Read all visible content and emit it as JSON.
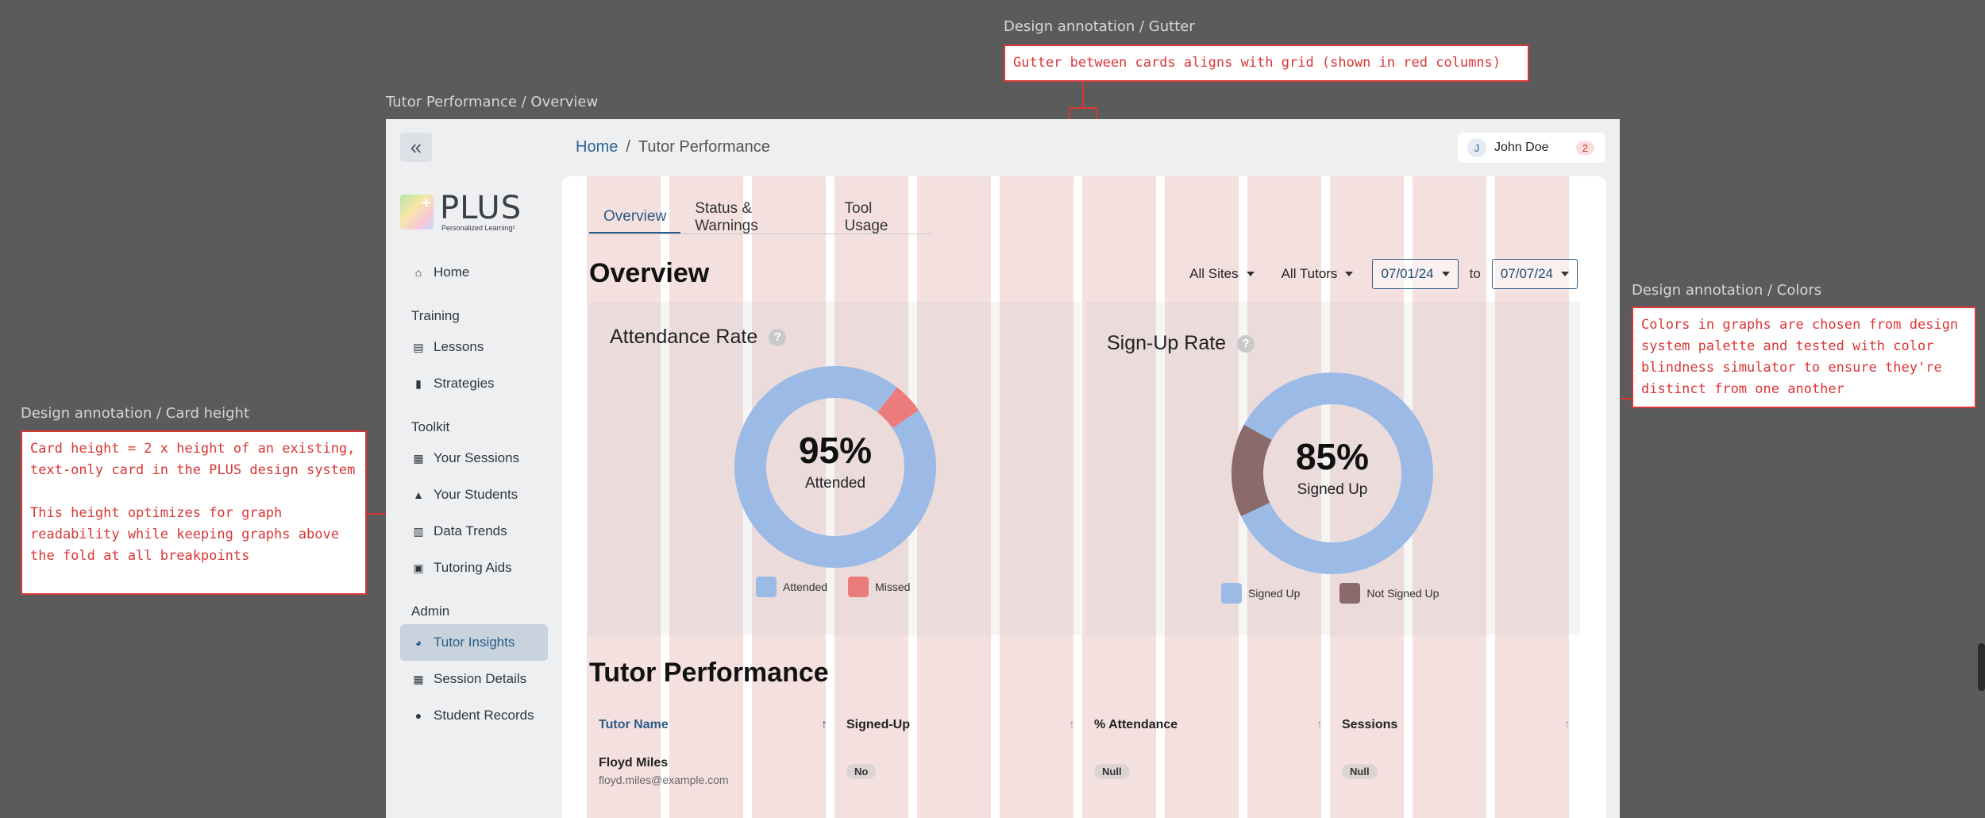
{
  "frame_label": "Tutor Performance / Overview",
  "sidebar": {
    "logo": {
      "word": "PLUS",
      "tagline": "Personalized Learning²"
    },
    "items": [
      {
        "type": "item",
        "label": "Home",
        "icon": "home-icon"
      },
      {
        "type": "section",
        "label": "Training"
      },
      {
        "type": "item",
        "label": "Lessons",
        "icon": "book-icon"
      },
      {
        "type": "item",
        "label": "Strategies",
        "icon": "clipboard-icon"
      },
      {
        "type": "section",
        "label": "Toolkit"
      },
      {
        "type": "item",
        "label": "Your Sessions",
        "icon": "calendar-icon"
      },
      {
        "type": "item",
        "label": "Your Students",
        "icon": "graduation-cap-icon"
      },
      {
        "type": "item",
        "label": "Data Trends",
        "icon": "bar-chart-icon"
      },
      {
        "type": "item",
        "label": "Tutoring Aids",
        "icon": "toolbox-icon"
      },
      {
        "type": "section",
        "label": "Admin"
      },
      {
        "type": "item",
        "label": "Tutor Insights",
        "icon": "pie-chart-icon",
        "active": true
      },
      {
        "type": "item",
        "label": "Session Details",
        "icon": "calendar-icon"
      },
      {
        "type": "item",
        "label": "Student Records",
        "icon": "users-icon"
      }
    ]
  },
  "breadcrumb": {
    "home": "Home",
    "separator": "/",
    "current": "Tutor Performance"
  },
  "user": {
    "initial": "J",
    "name": "John Doe",
    "notifications": "2"
  },
  "tabs": [
    {
      "label": "Overview",
      "active": true
    },
    {
      "label": "Status & Warnings"
    },
    {
      "label": "Tool Usage"
    }
  ],
  "overview_title": "Overview",
  "filters": {
    "sites": "All Sites",
    "tutors": "All Tutors",
    "date_from": "07/01/24",
    "to": "to",
    "date_to": "07/07/24"
  },
  "attendance": {
    "title": "Attendance Rate",
    "help": "?",
    "pct": "95%",
    "label": "Attended",
    "legend": [
      "Attended",
      "Missed"
    ]
  },
  "signup": {
    "title": "Sign-Up Rate",
    "help": "?",
    "pct": "85%",
    "label": "Signed Up",
    "legend": [
      "Signed Up",
      "Not Signed Up"
    ]
  },
  "chart_data": [
    {
      "type": "pie",
      "title": "Attendance Rate",
      "categories": [
        "Attended",
        "Missed"
      ],
      "values": [
        95,
        5
      ],
      "colors": [
        "#9bbbe6",
        "#ec7c7c"
      ]
    },
    {
      "type": "pie",
      "title": "Sign-Up Rate",
      "categories": [
        "Signed Up",
        "Not Signed Up"
      ],
      "values": [
        85,
        15
      ],
      "colors": [
        "#9bbbe6",
        "#8a6a6a"
      ]
    }
  ],
  "performance_title": "Tutor Performance",
  "table": {
    "columns": [
      "Tutor Name",
      "Signed-Up",
      "% Attendance",
      "Sessions"
    ],
    "rows": [
      {
        "name": "Floyd Miles",
        "email": "floyd.miles@example.com",
        "signed_up": "No",
        "attendance": "Null",
        "sessions": "Null"
      }
    ]
  },
  "annotations": {
    "gutter": {
      "label": "Design annotation / Gutter",
      "text": "Gutter between cards aligns with grid (shown in red columns)"
    },
    "colors": {
      "label": "Design annotation / Colors",
      "text": "Colors in graphs are chosen from design system palette and tested with color blindness simulator to ensure they're distinct from one another"
    },
    "card_height": {
      "label": "Design annotation / Card height",
      "text": "Card height = 2 x height of an existing, text-only card in the PLUS design system\n\nThis height optimizes for graph readability while keeping graphs above the fold at all breakpoints"
    }
  }
}
